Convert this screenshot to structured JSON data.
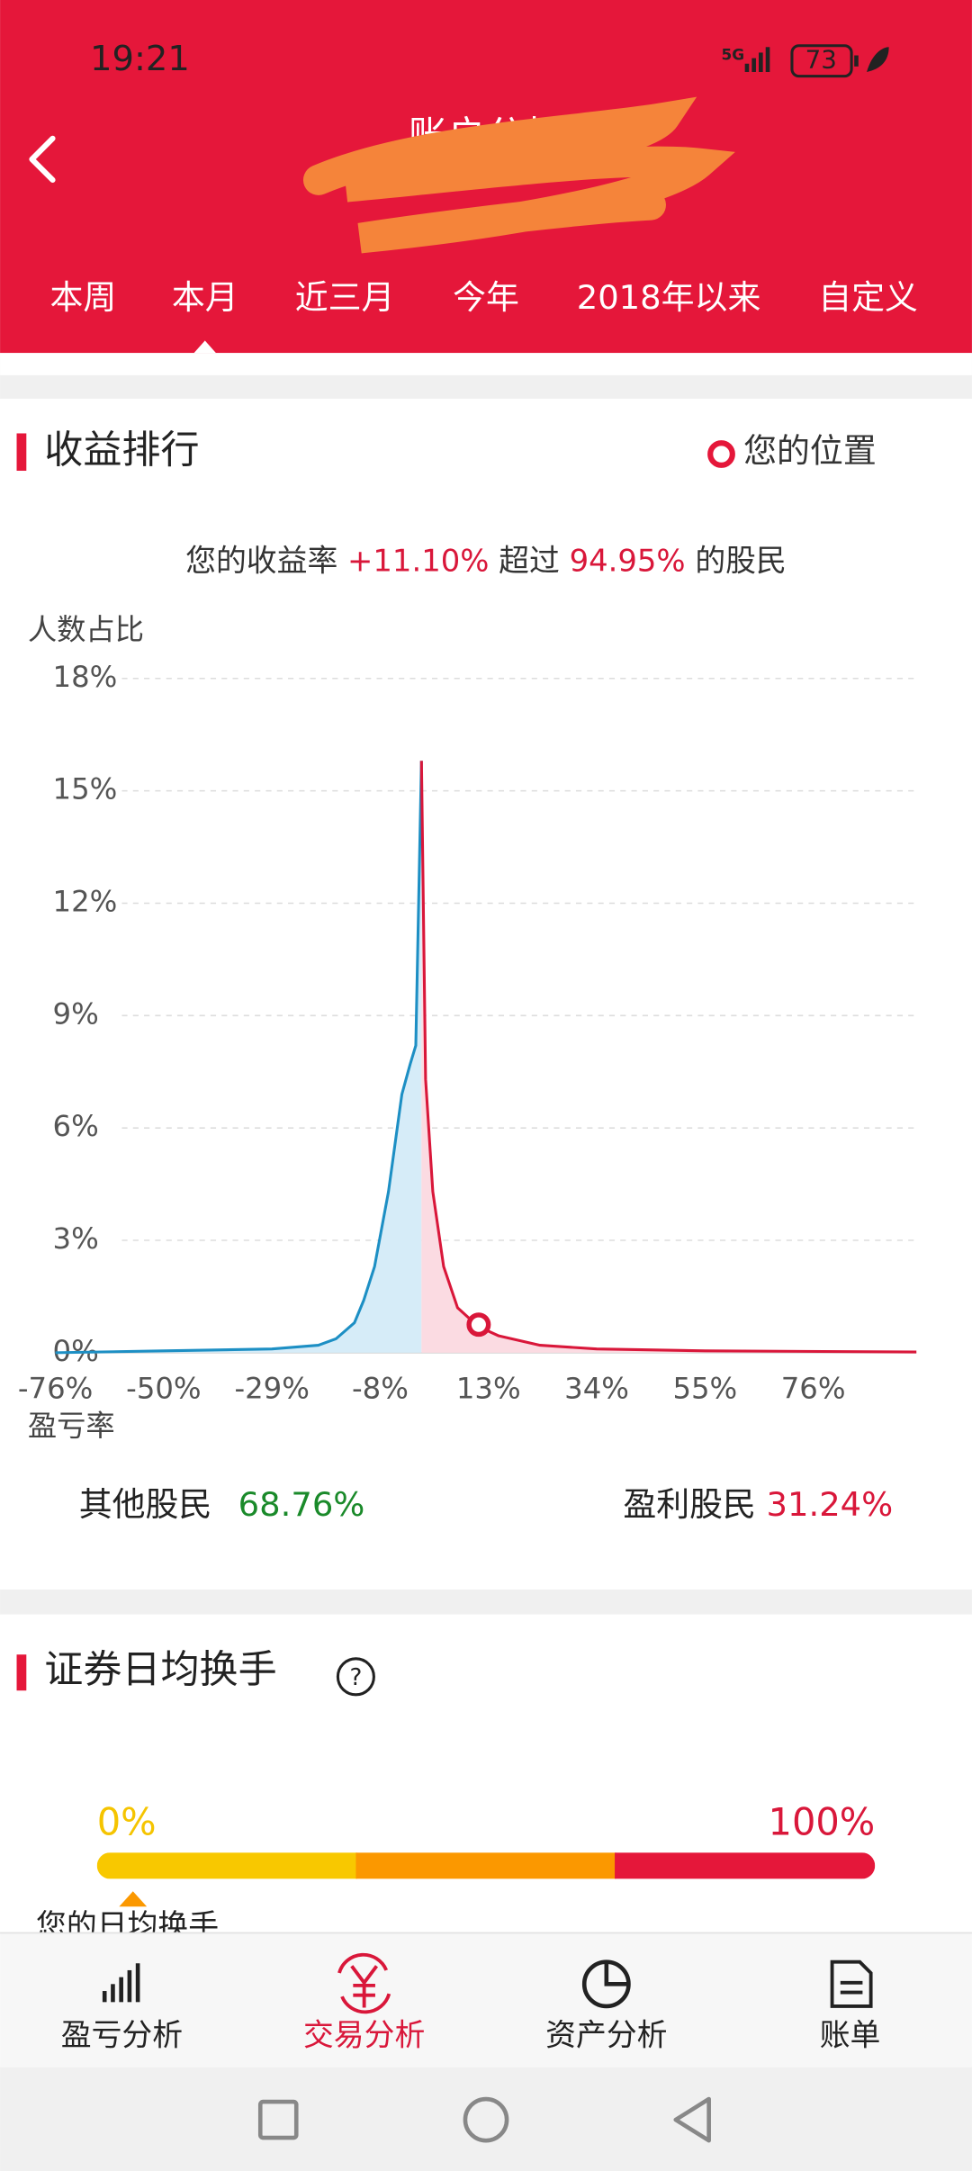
{
  "status_bar": {
    "time": "19:21",
    "network": "5G",
    "battery": "73"
  },
  "header": {
    "title": "账户分析"
  },
  "tabs": [
    "本周",
    "本月",
    "近三月",
    "今年",
    "2018年以来",
    "自定义"
  ],
  "ranking": {
    "title": "收益排行",
    "legend": "您的位置",
    "summary": {
      "prefix": "您的收益率",
      "yield": "+11.10%",
      "middle": "超过",
      "beat": "94.95%",
      "suffix": "的股民"
    }
  },
  "chart_data": {
    "type": "area",
    "y_label": "人数占比",
    "x_label": "盈亏率",
    "xlim": [
      -76,
      96
    ],
    "xticks": [
      {
        "value": -76,
        "label": "-76%"
      },
      {
        "value": -50,
        "label": "-50%"
      },
      {
        "value": -29,
        "label": "-29%"
      },
      {
        "value": -8,
        "label": "-8%"
      },
      {
        "value": 13,
        "label": "13%"
      },
      {
        "value": 34,
        "label": "34%"
      },
      {
        "value": 55,
        "label": "55%"
      },
      {
        "value": 76,
        "label": "76%"
      }
    ],
    "ylim": [
      0,
      18
    ],
    "yticks": [
      {
        "value": 0,
        "label": "0%"
      },
      {
        "value": 3,
        "label": "3%"
      },
      {
        "value": 6,
        "label": "6%"
      },
      {
        "value": 9,
        "label": "9%"
      },
      {
        "value": 12,
        "label": "12%"
      },
      {
        "value": 15,
        "label": "15%"
      },
      {
        "value": 18,
        "label": "18%"
      }
    ],
    "grid": true,
    "series": [
      {
        "name": "其他股民",
        "share": "68.76%",
        "color": "#1d8fc4",
        "fill": "#d6ecf8",
        "x": [
          -76,
          -50,
          -29,
          -20,
          -16.6,
          -13,
          -11.2,
          -9.1,
          -6.4,
          -3.8,
          -2.2,
          -1.1,
          0
        ],
        "values": [
          0,
          0.05,
          0.1,
          0.2,
          0.37,
          0.8,
          1.4,
          2.3,
          4.3,
          6.9,
          7.7,
          8.2,
          15.8
        ]
      },
      {
        "name": "盈利股民",
        "share": "31.24%",
        "color": "#d9173a",
        "fill": "#fbdbe2",
        "x": [
          0,
          0.8,
          2.2,
          4.3,
          7,
          11,
          15,
          23,
          34,
          55,
          96
        ],
        "values": [
          15.8,
          7.3,
          4.3,
          2.3,
          1.2,
          0.7,
          0.45,
          0.2,
          0.1,
          0.05,
          0.02
        ]
      }
    ],
    "your_position": {
      "x": 11.1,
      "y": 0.75
    }
  },
  "turnover": {
    "title": "证券日均换手",
    "help": "?",
    "min_label": "0%",
    "max_label": "100%",
    "caption": "您的日均换手"
  },
  "bottom_nav": [
    "盈亏分析",
    "交易分析",
    "资产分析",
    "账单"
  ]
}
